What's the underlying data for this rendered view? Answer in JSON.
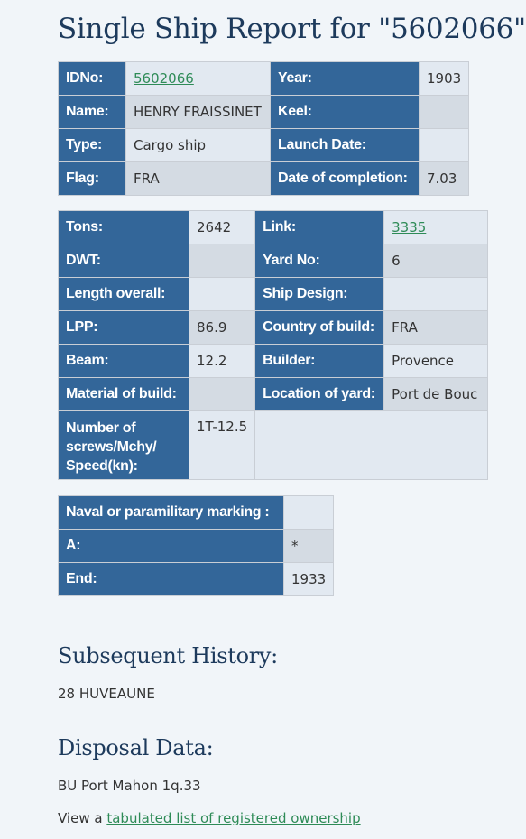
{
  "title": "Single Ship Report for \"5602066\"",
  "basic": {
    "idno_label": "IDNo:",
    "idno_value": "5602066",
    "year_label": "Year:",
    "year_value": "1903",
    "name_label": "Name:",
    "name_value": "HENRY FRAISSINET",
    "keel_label": "Keel:",
    "keel_value": "",
    "type_label": "Type:",
    "type_value": "Cargo ship",
    "launch_label": "Launch Date:",
    "launch_value": "",
    "flag_label": "Flag:",
    "flag_value": "FRA",
    "completion_label": "Date of completion:",
    "completion_value": "7.03"
  },
  "specs": {
    "tons_label": "Tons:",
    "tons_value": "2642",
    "link_label": "Link:",
    "link_value": "3335",
    "dwt_label": "DWT:",
    "dwt_value": "",
    "yard_label": "Yard No:",
    "yard_value": "6",
    "length_label": "Length overall:",
    "length_value": "",
    "design_label": "Ship Design:",
    "design_value": "",
    "lpp_label": "LPP:",
    "lpp_value": "86.9",
    "country_label": "Country of build:",
    "country_value": "FRA",
    "beam_label": "Beam:",
    "beam_value": "12.2",
    "builder_label": "Builder:",
    "builder_value": "Provence",
    "material_label": "Material of build:",
    "material_value": "",
    "location_label": "Location of yard:",
    "location_value": "Port de Bouc",
    "screws_label": "Number of screws/Mchy/ Speed(kn):",
    "screws_value": "1T-12.5"
  },
  "marking": {
    "naval_label": "Naval or paramilitary marking :",
    "naval_value": "",
    "a_label": "A:",
    "a_value": "*",
    "end_label": "End:",
    "end_value": "1933"
  },
  "history": {
    "heading": "Subsequent History:",
    "text": "28 HUVEAUNE"
  },
  "disposal": {
    "heading": "Disposal Data:",
    "text": "BU Port Mahon 1q.33",
    "view_prefix": "View a",
    "view_link": "tabulated list of registered ownership"
  },
  "colors": {
    "header_bg": "#336699",
    "title": "#1d3a5c",
    "link": "#2e8b57",
    "page_bg": "#f1f5f9"
  }
}
